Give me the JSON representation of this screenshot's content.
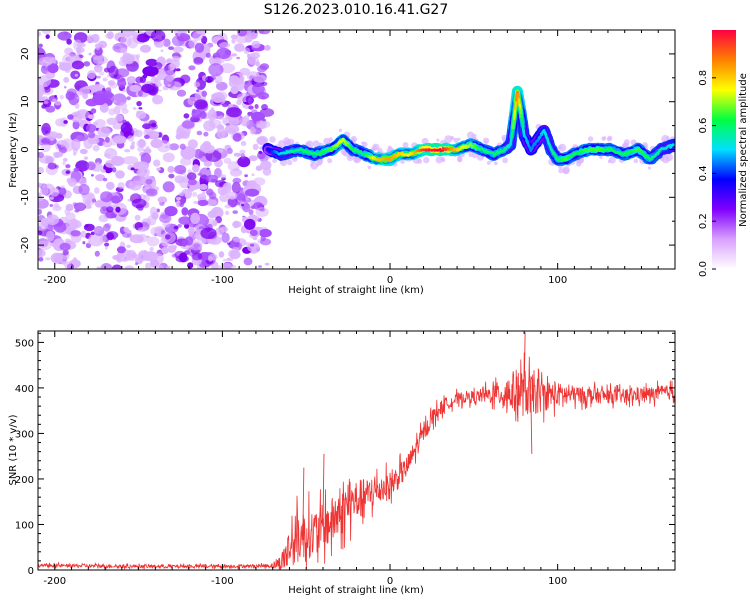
{
  "title": "S126.2023.010.16.41.G27",
  "chart_data": [
    {
      "type": "heatmap",
      "xlabel": "Height of straight line (km)",
      "ylabel": "Frequency (Hz)",
      "xlim": [
        -210,
        170
      ],
      "ylim": [
        -25,
        25
      ],
      "xticks": [
        -200,
        -100,
        0,
        100
      ],
      "yticks": [
        -20,
        -10,
        0,
        10,
        20
      ],
      "colorbar": {
        "label": "Normalized spectral amplitude",
        "range": [
          0.0,
          1.0
        ],
        "ticks": [
          "0.0",
          "0.2",
          "0.4",
          "0.6",
          "0.8"
        ],
        "colormap": [
          "#ffffff",
          "#d9a0ff",
          "#8000ff",
          "#0000ff",
          "#00e0ff",
          "#00ff40",
          "#ffff00",
          "#ff8000",
          "#ff0040"
        ]
      },
      "noise_region": {
        "x": [
          -210,
          -73
        ],
        "amplitude": 0.3
      },
      "ridge": {
        "x": [
          -73,
          -65,
          -55,
          -45,
          -35,
          -28,
          -22,
          -15,
          -8,
          0,
          5,
          12,
          20,
          30,
          40,
          48,
          55,
          62,
          68,
          72,
          76,
          78,
          80,
          84,
          88,
          92,
          96,
          100,
          105,
          110,
          118,
          125,
          132,
          140,
          148,
          155,
          162,
          170
        ],
        "freq": [
          0,
          -1,
          0,
          -1,
          0,
          2,
          0,
          -1,
          -2,
          -2,
          -1,
          -1,
          0,
          0,
          0,
          1,
          0,
          -1,
          0,
          1,
          12,
          8,
          3,
          0,
          2,
          4,
          0,
          -2,
          -2,
          -1,
          0,
          0,
          0,
          -1,
          0,
          -2,
          0,
          1
        ],
        "amplitude": [
          0.35,
          0.5,
          0.6,
          0.6,
          0.65,
          0.75,
          0.6,
          0.6,
          0.8,
          0.85,
          0.8,
          0.75,
          0.95,
          1.0,
          0.8,
          0.7,
          0.6,
          0.6,
          0.6,
          0.5,
          0.9,
          0.7,
          0.5,
          0.45,
          0.45,
          0.5,
          0.55,
          0.6,
          0.65,
          0.6,
          0.65,
          0.65,
          0.6,
          0.6,
          0.65,
          0.6,
          0.55,
          0.5
        ]
      }
    },
    {
      "type": "line",
      "xlabel": "Height of straight line (km)",
      "ylabel": "SNR (10 * v/v)",
      "xlim": [
        -210,
        170
      ],
      "ylim": [
        0,
        525
      ],
      "xticks": [
        -200,
        -100,
        0,
        100
      ],
      "yticks": [
        0,
        100,
        200,
        300,
        400,
        500
      ],
      "color": "#ee3333",
      "series": [
        {
          "name": "SNR",
          "x": [
            -210,
            -150,
            -100,
            -75,
            -70,
            -65,
            -62,
            -58,
            -55,
            -50,
            -45,
            -40,
            -35,
            -30,
            -25,
            -20,
            -15,
            -10,
            -5,
            0,
            5,
            10,
            15,
            20,
            25,
            30,
            35,
            40,
            45,
            50,
            55,
            60,
            65,
            70,
            75,
            80,
            85,
            90,
            95,
            100,
            110,
            120,
            130,
            140,
            150,
            160,
            170
          ],
          "y": [
            10,
            8,
            8,
            9,
            10,
            15,
            35,
            60,
            70,
            80,
            80,
            95,
            105,
            120,
            140,
            155,
            160,
            170,
            180,
            185,
            205,
            225,
            265,
            300,
            335,
            355,
            368,
            375,
            380,
            380,
            383,
            385,
            388,
            388,
            392,
            390,
            385,
            382,
            385,
            385,
            385,
            383,
            382,
            382,
            385,
            388,
            392
          ],
          "noise": [
            4,
            4,
            4,
            4,
            8,
            20,
            45,
            60,
            65,
            60,
            60,
            55,
            60,
            55,
            55,
            50,
            45,
            40,
            35,
            35,
            30,
            28,
            25,
            22,
            20,
            18,
            15,
            15,
            15,
            15,
            18,
            22,
            30,
            45,
            55,
            60,
            50,
            40,
            35,
            30,
            22,
            20,
            18,
            18,
            18,
            18,
            18
          ],
          "spikes": [
            {
              "x": 80,
              "y": 522
            },
            {
              "x": 84,
              "y": 255
            },
            {
              "x": -40,
              "y": 255
            },
            {
              "x": -52,
              "y": 225
            }
          ]
        }
      ]
    }
  ]
}
